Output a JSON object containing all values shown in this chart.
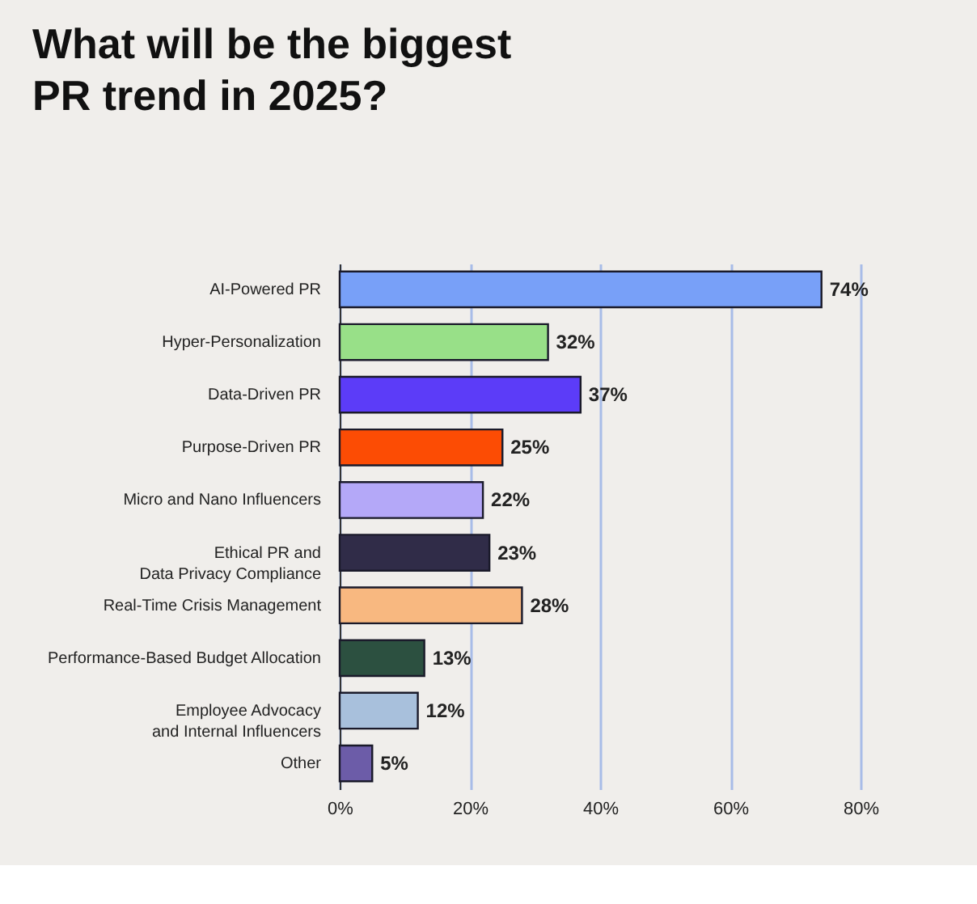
{
  "chart_data": {
    "type": "bar",
    "orientation": "horizontal",
    "title": "What will be the biggest\nPR trend in 2025?",
    "categories": [
      "AI-Powered PR",
      "Hyper-Personalization",
      "Data-Driven PR",
      "Purpose-Driven PR",
      "Micro and Nano Influencers",
      "Ethical PR and\nData Privacy Compliance",
      "Real-Time Crisis Management",
      "Performance-Based Budget Allocation",
      "Employee Advocacy\nand Internal Influencers",
      "Other"
    ],
    "values": [
      74,
      32,
      37,
      25,
      22,
      23,
      28,
      13,
      12,
      5
    ],
    "colors": [
      "#78a0f8",
      "#98e088",
      "#5c3cf8",
      "#fc4c04",
      "#b4a8f8",
      "#302c48",
      "#f8b880",
      "#2c5040",
      "#a8c0dc",
      "#6c5ca8"
    ],
    "value_labels": [
      "74%",
      "32%",
      "37%",
      "25%",
      "22%",
      "23%",
      "28%",
      "13%",
      "12%",
      "5%"
    ],
    "xlim": [
      0,
      80
    ],
    "xticks": [
      {
        "value": 0,
        "label": "0%"
      },
      {
        "value": 20,
        "label": "20%"
      },
      {
        "value": 40,
        "label": "40%"
      },
      {
        "value": 60,
        "label": "60%"
      },
      {
        "value": 80,
        "label": "80%"
      }
    ],
    "grid": "x"
  }
}
